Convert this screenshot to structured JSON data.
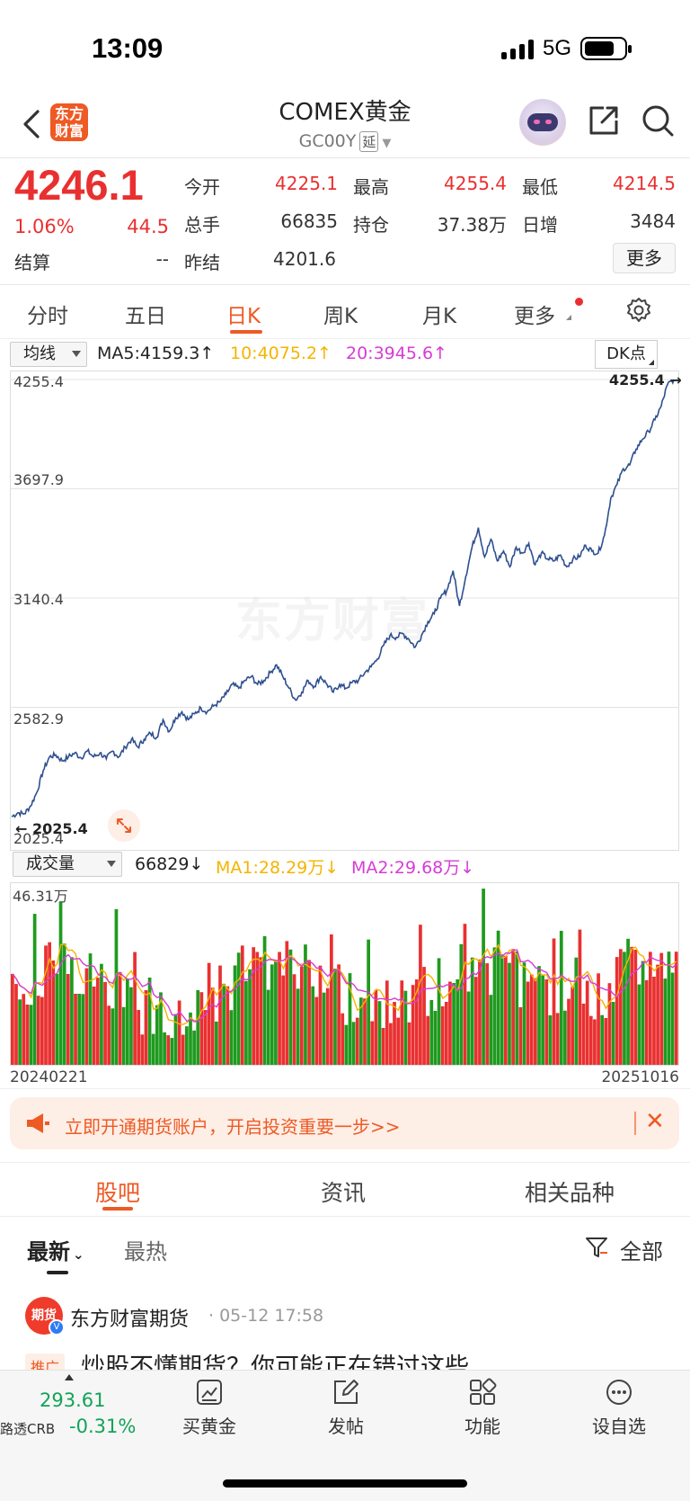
{
  "status_bar": {
    "time": "13:09",
    "network": "5G"
  },
  "header": {
    "logo_text_line1": "东方",
    "logo_text_line2": "财富",
    "title": "COMEX黄金",
    "code": "GC00Y",
    "delay_tag": "延"
  },
  "quote": {
    "price": "4246.1",
    "change_pct": "1.06%",
    "change": "44.5",
    "settle_label": "结算",
    "settle_value": "--",
    "fields": [
      {
        "label": "今开",
        "value": "4225.1",
        "color": "red"
      },
      {
        "label": "最高",
        "value": "4255.4",
        "color": "red"
      },
      {
        "label": "最低",
        "value": "4214.5",
        "color": "red"
      },
      {
        "label": "总手",
        "value": "66835",
        "color": "dark"
      },
      {
        "label": "持仓",
        "value": "37.38万",
        "color": "dark"
      },
      {
        "label": "日增",
        "value": "3484",
        "color": "dark"
      },
      {
        "label": "昨结",
        "value": "4201.6",
        "color": "dark"
      }
    ],
    "more_label": "更多"
  },
  "period_tabs": [
    "分时",
    "五日",
    "日K",
    "周K",
    "月K",
    "更多"
  ],
  "active_period": "日K",
  "ma_bar": {
    "selector": "均线",
    "ma5": "MA5:4159.3↑",
    "ma10": "10:4075.2↑",
    "ma20": "20:3945.6↑",
    "dk_label": "DK点"
  },
  "price_axis": [
    "4255.4",
    "3697.9",
    "3140.4",
    "2582.9",
    "2025.4"
  ],
  "high_marker": "4255.4",
  "low_marker": "2025.4",
  "watermark": "东方财富",
  "vol_bar": {
    "selector": "成交量",
    "vol": "66829↓",
    "ma1": "MA1:28.29万↓",
    "ma2": "MA2:29.68万↓",
    "axis_max": "46.31万"
  },
  "dates": {
    "start": "20240221",
    "end": "20251016"
  },
  "colors": {
    "accent": "#ee5a24",
    "up": "#e93030",
    "down": "#12a35a",
    "line": "#2e4f8f",
    "ma1": "#f5b400",
    "ma2": "#d63cd6"
  },
  "chart_data": {
    "type": "line",
    "title": "",
    "xlabel": "",
    "ylabel": "",
    "x_range": [
      "20240221",
      "20251016"
    ],
    "ylim": [
      2025.4,
      4255.4
    ],
    "series": [
      {
        "name": "",
        "values": [
          2025,
          2045,
          2040,
          2080,
          2150,
          2260,
          2330,
          2340,
          2310,
          2330,
          2350,
          2325,
          2360,
          2330,
          2350,
          2320,
          2360,
          2330,
          2380,
          2420,
          2380,
          2420,
          2450,
          2430,
          2520,
          2460,
          2530,
          2560,
          2520,
          2550,
          2580,
          2560,
          2590,
          2610,
          2650,
          2700,
          2680,
          2720,
          2740,
          2700,
          2720,
          2760,
          2800,
          2740,
          2680,
          2620,
          2660,
          2720,
          2690,
          2740,
          2700,
          2660,
          2700,
          2680,
          2710,
          2720,
          2760,
          2790,
          2830,
          2900,
          2950,
          2940,
          2960,
          2930,
          2890,
          2950,
          3020,
          3060,
          3140,
          3180,
          3280,
          3100,
          3250,
          3400,
          3500,
          3350,
          3440,
          3330,
          3380,
          3300,
          3400,
          3370,
          3420,
          3310,
          3370,
          3340,
          3330,
          3360,
          3300,
          3340,
          3350,
          3410,
          3380,
          3370,
          3460,
          3650,
          3720,
          3800,
          3820,
          3900,
          3950,
          3990,
          4050,
          4120,
          4230,
          4255
        ]
      }
    ],
    "volume_max": "46.31万"
  },
  "banner": {
    "text": "立即开通期货账户，开启投资重要一步>>"
  },
  "content_tabs": [
    "股吧",
    "资讯",
    "相关品种"
  ],
  "sort": {
    "latest": "最新",
    "hot": "最热",
    "filter": "全部"
  },
  "post": {
    "avatar_text": "期货",
    "author": "东方财富期货",
    "time": "· 05-12 17:58",
    "tag": "推广",
    "title": "炒股不懂期货？你可能正在错过这些"
  },
  "bottom_bar": {
    "index_value": "293.61",
    "index_name": "路透CRB",
    "index_pct": "-0.31%",
    "items": [
      {
        "label": "买黄金"
      },
      {
        "label": "发帖"
      },
      {
        "label": "功能"
      },
      {
        "label": "设自选"
      }
    ]
  }
}
